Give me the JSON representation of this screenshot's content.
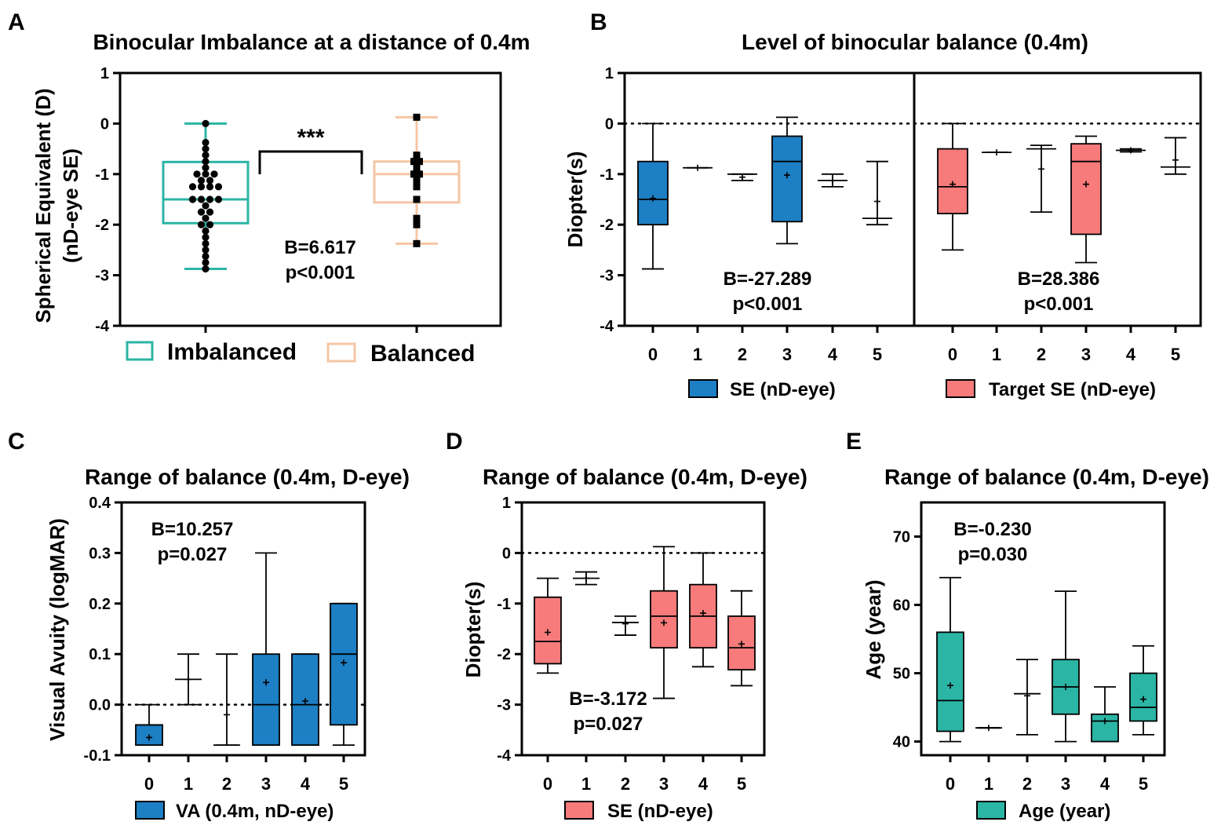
{
  "figure": {
    "background": "#ffffff"
  },
  "chart_data": [
    {
      "id": "A",
      "type": "box",
      "panel_label": "A",
      "title": "Binocular Imbalance at a distance of 0.4m",
      "ylabel_lines": [
        "Spherical Equivalent (D)",
        "(nD-eye  SE)"
      ],
      "ylim": [
        -4,
        1
      ],
      "yticks": [
        1,
        0,
        -1,
        -2,
        -3,
        -4
      ],
      "y_tick_labels": [
        "1",
        "0",
        "-1",
        "-2",
        "-3",
        "-4"
      ],
      "significance": "***",
      "annotation": [
        "B=6.617",
        "p<0.001"
      ],
      "groups": [
        {
          "name": "Imbalanced",
          "color": "#2bb5a5",
          "marker": "circle",
          "min": -2.875,
          "q1": -1.97,
          "median": -1.5,
          "q3": -0.76,
          "max": 0.0,
          "points": [
            0.0,
            -0.375,
            -0.5,
            -0.625,
            -0.75,
            -0.875,
            -1.0,
            -1.0,
            -1.0,
            -1.125,
            -1.125,
            -1.25,
            -1.25,
            -1.25,
            -1.25,
            -1.5,
            -1.5,
            -1.5,
            -1.5,
            -1.625,
            -1.75,
            -1.75,
            -1.875,
            -2.0,
            -2.0,
            -2.125,
            -2.25,
            -2.375,
            -2.5,
            -2.625,
            -2.75,
            -2.875
          ]
        },
        {
          "name": "Balanced",
          "color": "#f5c6a5",
          "marker": "square",
          "min": -2.375,
          "q1": -1.56,
          "median": -1.0,
          "q3": -0.75,
          "max": 0.125,
          "points": [
            0.125,
            -0.625,
            -0.75,
            -0.75,
            -0.875,
            -1.0,
            -1.0,
            -1.125,
            -1.25,
            -1.5,
            -1.875,
            -2.0,
            -2.375
          ]
        }
      ]
    },
    {
      "id": "B",
      "type": "box",
      "panel_label": "B",
      "title": "Level of binocular balance (0.4m)",
      "ylabel": "Diopter(s)",
      "ylim": [
        -4,
        1
      ],
      "yticks": [
        1,
        0,
        -1,
        -2,
        -3,
        -4
      ],
      "y_tick_labels": [
        "1",
        "0",
        "-1",
        "-2",
        "-3",
        "-4"
      ],
      "categories": [
        "0",
        "1",
        "2",
        "3",
        "4",
        "5"
      ],
      "reference_line": 0,
      "series": [
        {
          "name": "SE (nD-eye)",
          "color": "#1d7fc4",
          "annotation": [
            "B=-27.289",
            "p<0.001"
          ],
          "boxes": [
            {
              "min": -2.875,
              "q1": -2.0,
              "median": -1.5,
              "q3": -0.75,
              "max": 0.0,
              "mean": -1.48
            },
            {
              "min": -0.875,
              "q1": -0.875,
              "median": -0.875,
              "q3": -0.875,
              "max": -0.875,
              "mean": -0.875
            },
            {
              "min": -1.125,
              "q1": -1.0,
              "median": -1.0,
              "q3": -1.0,
              "max": -1.0,
              "mean": -1.06
            },
            {
              "min": -2.375,
              "q1": -1.94,
              "median": -0.75,
              "q3": -0.25,
              "max": 0.125,
              "mean": -1.02
            },
            {
              "min": -1.25,
              "q1": -1.125,
              "median": -1.125,
              "q3": -1.125,
              "max": -1.0,
              "mean": -1.125
            },
            {
              "min": -2.0,
              "q1": -1.875,
              "median": -1.875,
              "q3": -1.875,
              "max": -0.75,
              "mean": -1.54
            }
          ]
        },
        {
          "name": "Target SE (nD-eye)",
          "color": "#f77b7b",
          "annotation": [
            "B=28.386",
            "p<0.001"
          ],
          "boxes": [
            {
              "min": -2.5,
              "q1": -1.78,
              "median": -1.25,
              "q3": -0.5,
              "max": 0.0,
              "mean": -1.2
            },
            {
              "min": -0.57,
              "q1": -0.57,
              "median": -0.57,
              "q3": -0.57,
              "max": -0.57,
              "mean": -0.57
            },
            {
              "min": -1.75,
              "q1": -0.5,
              "median": -0.5,
              "q3": -0.5,
              "max": -0.43,
              "mean": -0.9
            },
            {
              "min": -2.75,
              "q1": -2.19,
              "median": -0.75,
              "q3": -0.4,
              "max": -0.25,
              "mean": -1.2
            },
            {
              "min": -0.56,
              "q1": -0.53,
              "median": -0.53,
              "q3": -0.53,
              "max": -0.5,
              "mean": -0.53
            },
            {
              "min": -1.0,
              "q1": -0.86,
              "median": -0.86,
              "q3": -0.86,
              "max": -0.28,
              "mean": -0.72
            }
          ]
        }
      ]
    },
    {
      "id": "C",
      "type": "box",
      "panel_label": "C",
      "title": "Range of balance (0.4m, D-eye)",
      "ylabel": "Visual Avuity (logMAR)",
      "ylim": [
        -0.1,
        0.4
      ],
      "yticks": [
        0.4,
        0.3,
        0.2,
        0.1,
        0.0,
        -0.1
      ],
      "y_tick_labels": [
        "0.4",
        "0.3",
        "0.2",
        "0.1",
        "0.0",
        "-0.1"
      ],
      "categories": [
        "0",
        "1",
        "2",
        "3",
        "4",
        "5"
      ],
      "reference_line": 0,
      "legend": "VA (0.4m, nD-eye)",
      "color": "#1d7fc4",
      "annotation": [
        "B=10.257",
        "p=0.027"
      ],
      "boxes": [
        {
          "min": -0.08,
          "q1": -0.08,
          "median": -0.04,
          "q3": -0.04,
          "max": 0.0,
          "mean": -0.065
        },
        {
          "min": 0.0,
          "q1": 0.05,
          "median": 0.05,
          "q3": 0.05,
          "max": 0.1,
          "mean": 0.05
        },
        {
          "min": -0.08,
          "q1": -0.08,
          "median": -0.08,
          "q3": -0.08,
          "max": 0.1,
          "mean": -0.02
        },
        {
          "min": -0.08,
          "q1": -0.08,
          "median": 0.0,
          "q3": 0.1,
          "max": 0.3,
          "mean": 0.044
        },
        {
          "min": -0.08,
          "q1": -0.08,
          "median": 0.0,
          "q3": 0.1,
          "max": 0.1,
          "mean": 0.007
        },
        {
          "min": -0.08,
          "q1": -0.04,
          "median": 0.1,
          "q3": 0.2,
          "max": 0.2,
          "mean": 0.083
        }
      ]
    },
    {
      "id": "D",
      "type": "box",
      "panel_label": "D",
      "title": "Range of balance (0.4m, D-eye)",
      "ylabel": "Diopter(s)",
      "ylim": [
        -4,
        1
      ],
      "yticks": [
        1,
        0,
        -1,
        -2,
        -3,
        -4
      ],
      "y_tick_labels": [
        "1",
        "0",
        "-1",
        "-2",
        "-3",
        "-4"
      ],
      "categories": [
        "0",
        "1",
        "2",
        "3",
        "4",
        "5"
      ],
      "reference_line": 0,
      "legend": "SE (nD-eye)",
      "color": "#f77b7b",
      "annotation": [
        "B=-3.172",
        "p=0.027"
      ],
      "boxes": [
        {
          "min": -2.375,
          "q1": -2.19,
          "median": -1.75,
          "q3": -0.875,
          "max": -0.5,
          "mean": -1.57
        },
        {
          "min": -0.625,
          "q1": -0.5,
          "median": -0.5,
          "q3": -0.5,
          "max": -0.375,
          "mean": -0.5
        },
        {
          "min": -1.625,
          "q1": -1.375,
          "median": -1.375,
          "q3": -1.375,
          "max": -1.25,
          "mean": -1.4
        },
        {
          "min": -2.875,
          "q1": -1.875,
          "median": -1.25,
          "q3": -0.75,
          "max": 0.125,
          "mean": -1.38
        },
        {
          "min": -2.25,
          "q1": -1.875,
          "median": -1.25,
          "q3": -0.625,
          "max": 0.0,
          "mean": -1.19
        },
        {
          "min": -2.625,
          "q1": -2.31,
          "median": -1.875,
          "q3": -1.25,
          "max": -0.75,
          "mean": -1.8
        }
      ]
    },
    {
      "id": "E",
      "type": "box",
      "panel_label": "E",
      "title": "Range of balance (0.4m, D-eye)",
      "ylabel": "Age (year)",
      "ylim": [
        38,
        75
      ],
      "yticks": [
        70,
        60,
        50,
        40
      ],
      "y_tick_labels": [
        "70",
        "60",
        "50",
        "40"
      ],
      "categories": [
        "0",
        "1",
        "2",
        "3",
        "4",
        "5"
      ],
      "legend": "Age (year)",
      "color": "#2bb5a5",
      "annotation": [
        "B=-0.230",
        "p=0.030"
      ],
      "boxes": [
        {
          "min": 40,
          "q1": 41.5,
          "median": 46,
          "q3": 56,
          "max": 64,
          "mean": 48.2
        },
        {
          "min": 42,
          "q1": 42,
          "median": 42,
          "q3": 42,
          "max": 42,
          "mean": 42
        },
        {
          "min": 41,
          "q1": 47,
          "median": 47,
          "q3": 47,
          "max": 52,
          "mean": 46.7
        },
        {
          "min": 40,
          "q1": 44,
          "median": 48,
          "q3": 52,
          "max": 62,
          "mean": 48
        },
        {
          "min": 40,
          "q1": 40,
          "median": 43,
          "q3": 44,
          "max": 48,
          "mean": 43
        },
        {
          "min": 41,
          "q1": 43,
          "median": 45,
          "q3": 50,
          "max": 54,
          "mean": 46.2
        }
      ]
    }
  ]
}
